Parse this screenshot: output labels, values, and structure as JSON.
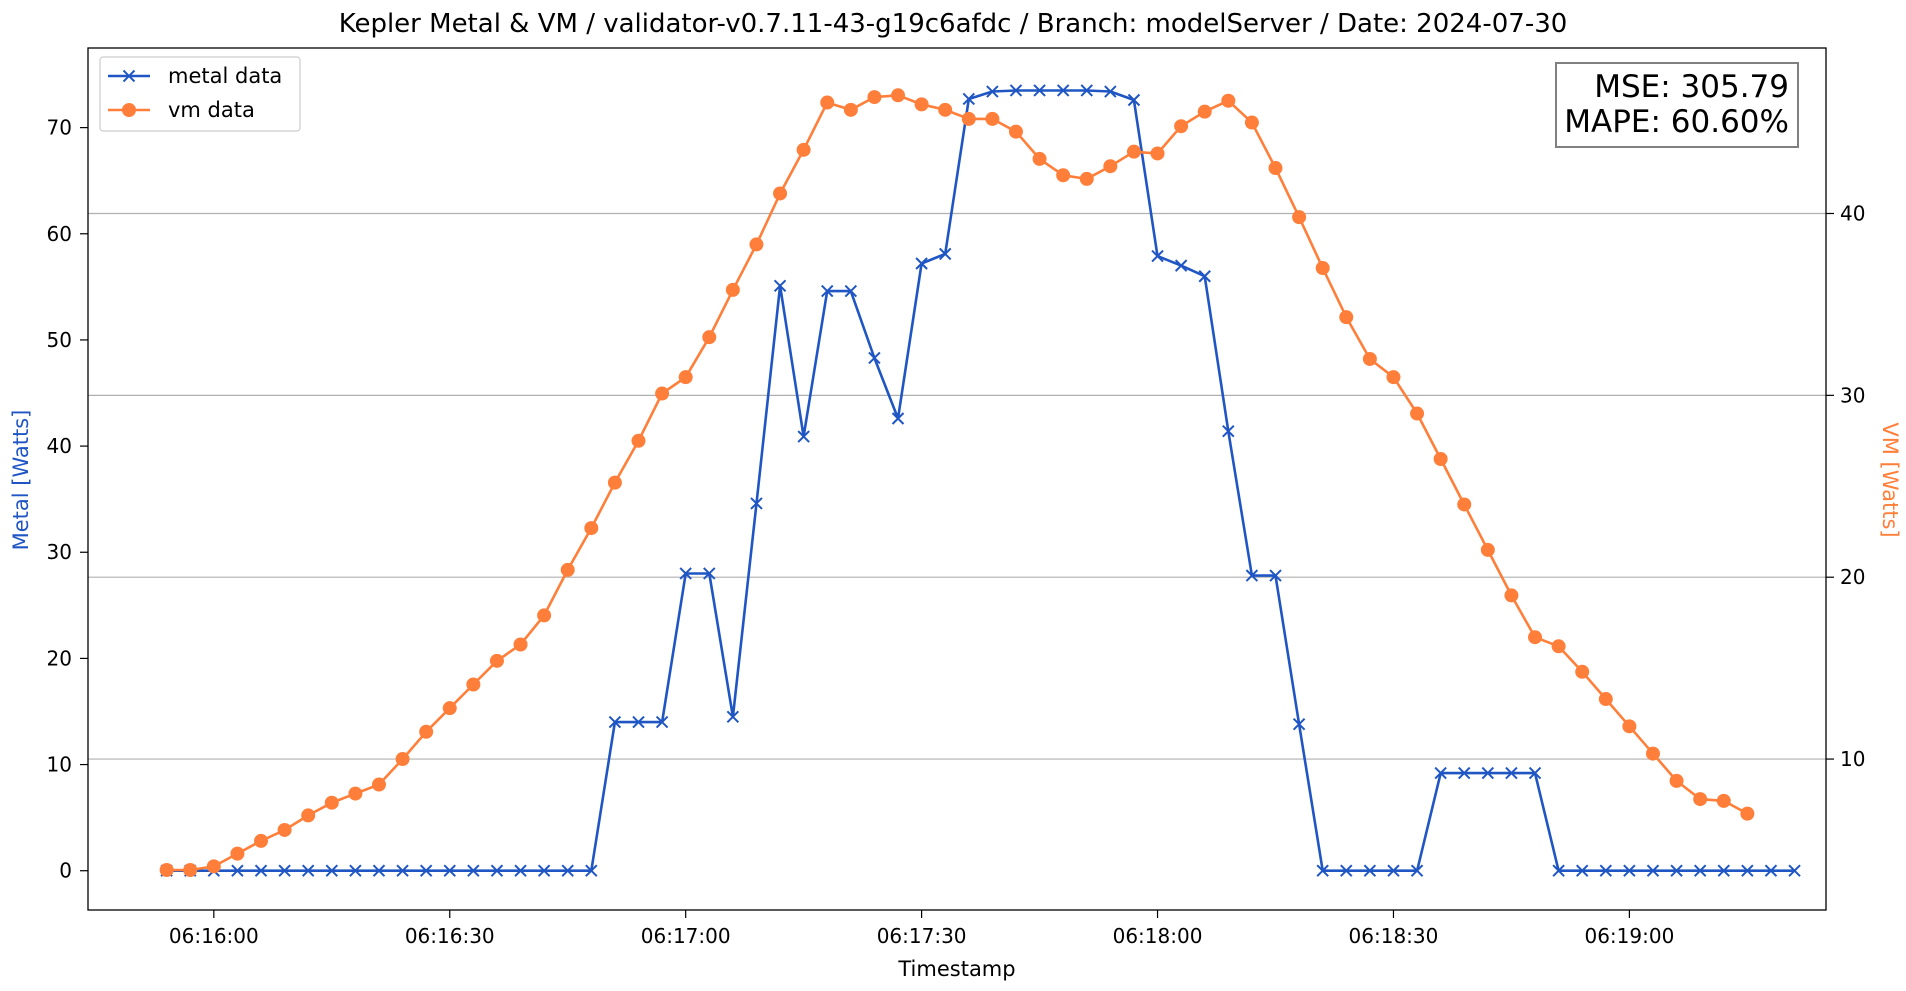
{
  "chart_data": {
    "type": "line",
    "title": "Kepler Metal & VM / validator-v0.7.11-43-g19c6afdc / Branch: modelServer / Date: 2024-07-30",
    "xlabel": "Timestamp",
    "ylabel_left": "Metal [Watts]",
    "ylabel_right": "VM [Watts]",
    "x_start": "06:15:54",
    "x_step_seconds": 3,
    "x_range": [
      "06:15:44",
      "06:19:25"
    ],
    "x_ticks": [
      "06:16:00",
      "06:16:30",
      "06:17:00",
      "06:17:30",
      "06:18:00",
      "06:18:30",
      "06:19:00"
    ],
    "y_left_range": [
      -3.7,
      77.5
    ],
    "y_left_ticks": [
      "0",
      "10",
      "20",
      "30",
      "40",
      "50",
      "60",
      "70"
    ],
    "y_right_range": [
      1.7,
      49.1
    ],
    "y_right_ticks": [
      "10",
      "20",
      "30",
      "40"
    ],
    "grid": "horizontal lines at right-axis ticks",
    "legend_position": "top-left",
    "stats_box_position": "top-right",
    "stats": {
      "mse": "MSE: 305.79",
      "mape": "MAPE: 60.60%"
    },
    "series": [
      {
        "name": "metal data",
        "axis": "left",
        "marker": "x",
        "color": "#1f56c4",
        "values": [
          0,
          0,
          0,
          0,
          0,
          0,
          0,
          0,
          0,
          0,
          0,
          0,
          0,
          0,
          0,
          0,
          0,
          0,
          0,
          14,
          14,
          14,
          28,
          28,
          14.5,
          34.6,
          55.1,
          40.9,
          54.6,
          54.6,
          48.3,
          42.6,
          57.2,
          58.1,
          72.7,
          73.4,
          73.5,
          73.5,
          73.5,
          73.5,
          73.4,
          72.6,
          57.9,
          57.0,
          56.0,
          41.4,
          27.8,
          27.8,
          13.8,
          0,
          0,
          0,
          0,
          0,
          9.2,
          9.2,
          9.2,
          9.2,
          9.2,
          0,
          0,
          0,
          0,
          0,
          0,
          0,
          0,
          0,
          0,
          0
        ]
      },
      {
        "name": "vm data",
        "axis": "right",
        "marker": "o",
        "color": "#ff7f3a",
        "values": [
          3.9,
          3.9,
          4.1,
          4.8,
          5.5,
          6.1,
          6.9,
          7.6,
          8.1,
          8.6,
          10.0,
          11.5,
          12.8,
          14.1,
          15.4,
          16.3,
          17.9,
          20.4,
          22.7,
          25.2,
          27.5,
          30.1,
          31.0,
          33.2,
          35.8,
          38.3,
          41.1,
          43.5,
          46.1,
          45.7,
          46.4,
          46.5,
          46.0,
          45.7,
          45.2,
          45.2,
          44.5,
          43.0,
          42.1,
          41.9,
          42.6,
          43.4,
          43.3,
          44.8,
          45.6,
          46.2,
          45.0,
          42.5,
          39.8,
          37.0,
          34.3,
          32.0,
          31.0,
          29.0,
          26.5,
          24.0,
          21.5,
          19.0,
          16.7,
          16.2,
          14.8,
          13.3,
          11.8,
          10.3,
          8.8,
          7.8,
          7.7,
          7.0
        ]
      }
    ]
  }
}
